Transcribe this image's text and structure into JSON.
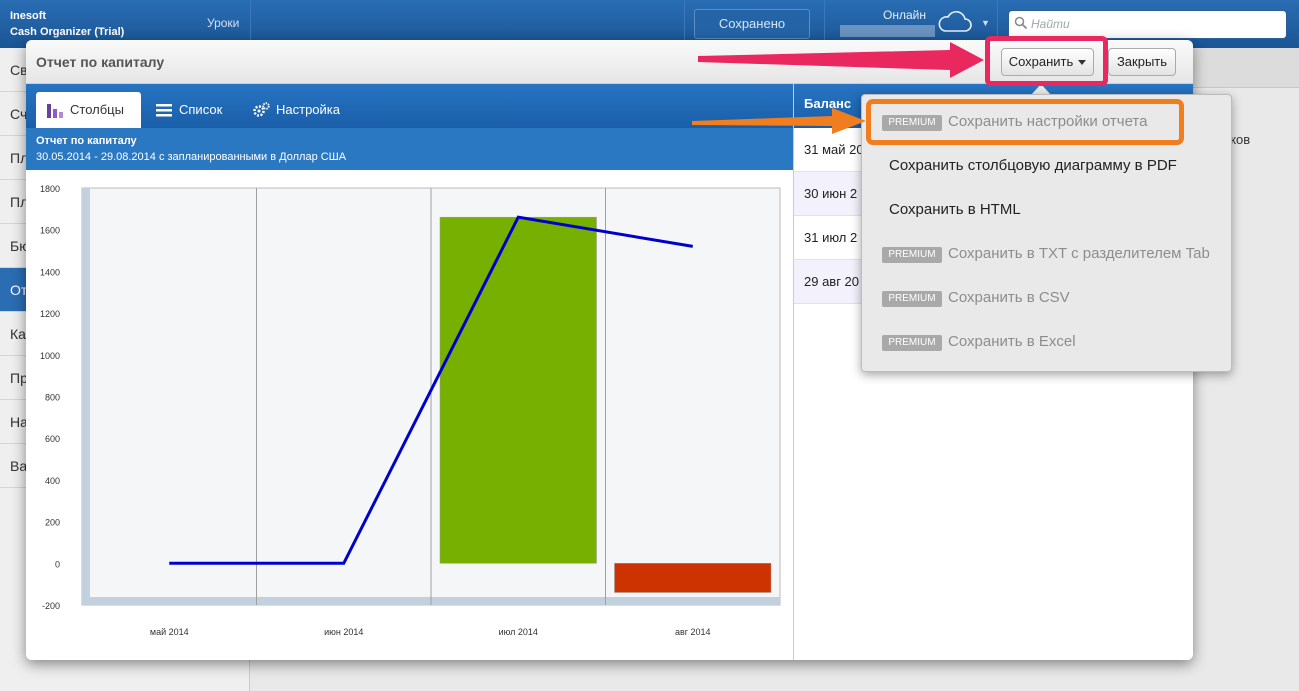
{
  "app": {
    "brand_line1": "Inesoft",
    "brand_line2": "Cash Organizer (Trial)",
    "lessons": "Уроки",
    "saved": "Сохранено",
    "online": "Онлайн",
    "search_placeholder": "Найти"
  },
  "bg_sidebar": {
    "items": [
      "Св",
      "Сч",
      "Пл",
      "Пл",
      "Бю",
      "От",
      "Ка",
      "Пр",
      "На",
      "Ва"
    ],
    "active_index": 5
  },
  "bg_right_text": "статков",
  "modal": {
    "title": "Отчет по капиталу",
    "save_label": "Сохранить",
    "close_label": "Закрыть",
    "tabs": [
      {
        "label": "Столбцы",
        "icon": "bar-chart-icon"
      },
      {
        "label": "Список",
        "icon": "list-icon"
      },
      {
        "label": "Настройка",
        "icon": "gears-icon"
      }
    ],
    "report_title": "Отчет по капиталу",
    "report_subtitle": "30.05.2014 - 29.08.2014 с запланированными в Доллар США",
    "right_header": "Баланс",
    "right_rows": [
      "31 май 20",
      "30 июн 2",
      "31 июл 2",
      "29 авг 20"
    ]
  },
  "menu": {
    "badge": "PREMIUM",
    "items": [
      {
        "label": "Сохранить настройки отчета",
        "premium": true
      },
      {
        "label": "Сохранить столбцовую диаграмму в PDF",
        "premium": false
      },
      {
        "label": "Сохранить в HTML",
        "premium": false
      },
      {
        "label": "Сохранить в TXT с разделителем Tab",
        "premium": true
      },
      {
        "label": "Сохранить в CSV",
        "premium": true
      },
      {
        "label": "Сохранить в Excel",
        "premium": true
      }
    ]
  },
  "colors": {
    "accent_blue": "#1a5ea8",
    "bar_positive": "#77b000",
    "bar_negative": "#cc3300",
    "line": "#0000cc",
    "highlight_pink": "#e8285f",
    "highlight_orange": "#f07d1e"
  },
  "chart_data": {
    "type": "bar",
    "categories": [
      "май 2014",
      "июн 2014",
      "июл 2014",
      "авг 2014"
    ],
    "series": [
      {
        "kind": "bar",
        "values": [
          0,
          0,
          1660,
          -140
        ]
      },
      {
        "kind": "line",
        "values": [
          0,
          0,
          1660,
          1520
        ]
      }
    ],
    "ylim": [
      -200,
      1800
    ],
    "yticks": [
      1800,
      1600,
      1400,
      1200,
      1000,
      800,
      600,
      400,
      200,
      0,
      -200
    ],
    "grid": true
  }
}
